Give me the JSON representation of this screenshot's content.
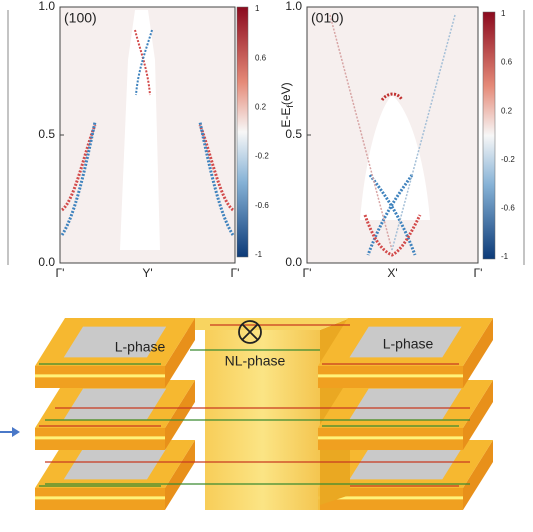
{
  "panels": [
    {
      "label": "(100)",
      "xticks": [
        "Γ'",
        "Y'",
        "Γ'"
      ],
      "yticks": [
        "0.0",
        "0.5",
        "1.0"
      ],
      "colorbar_ticks": [
        "1",
        "0.6",
        "0.2",
        "-0.2",
        "-0.6",
        "-1"
      ]
    },
    {
      "label": "(010)",
      "ylabel": "E-E",
      "ylabel_sub": "f",
      "ylabel_unit": "(eV)",
      "xticks": [
        "Γ'",
        "X'",
        "Γ'"
      ],
      "yticks": [
        "0.0",
        "0.5",
        "1.0"
      ],
      "colorbar_ticks": [
        "1",
        "0.6",
        "0.2",
        "-0.2",
        "-0.6",
        "-1"
      ]
    }
  ],
  "schematic": {
    "left_label": "L-phase",
    "center_label": "NL-phase",
    "right_label": "L-phase"
  }
}
